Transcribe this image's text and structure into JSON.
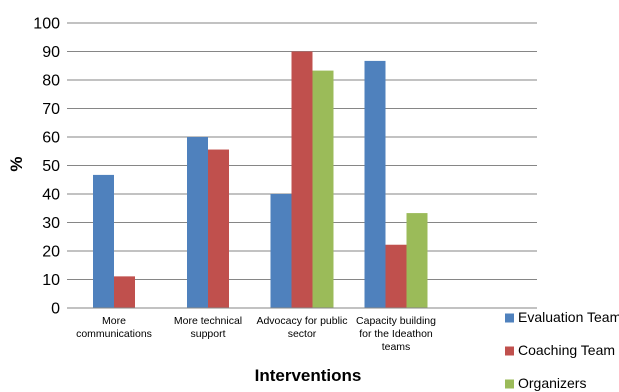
{
  "chart_data": {
    "type": "bar",
    "categories": [
      [
        "More",
        "communications"
      ],
      [
        "More technical",
        "support"
      ],
      [
        "Advocacy for public",
        "sector"
      ],
      [
        "Capacity building",
        "for the Ideathon",
        "teams"
      ],
      [
        ""
      ]
    ],
    "series": [
      {
        "name": "Evaluation Team",
        "color": "#4F81BD",
        "values": [
          46.7,
          60,
          40,
          86.7,
          null
        ]
      },
      {
        "name": "Coaching Team",
        "color": "#C0504D",
        "values": [
          11.1,
          55.6,
          90,
          22.2,
          null
        ]
      },
      {
        "name": "Organizers",
        "color": "#9BBB59",
        "values": [
          null,
          null,
          83.3,
          33.3,
          null
        ]
      }
    ],
    "xlabel": "Interventions",
    "ylabel": "%",
    "ylim": [
      0,
      100
    ],
    "yticks": [
      0,
      10,
      20,
      30,
      40,
      50,
      60,
      70,
      80,
      90,
      100
    ],
    "grid": true,
    "legend_position": "right"
  }
}
